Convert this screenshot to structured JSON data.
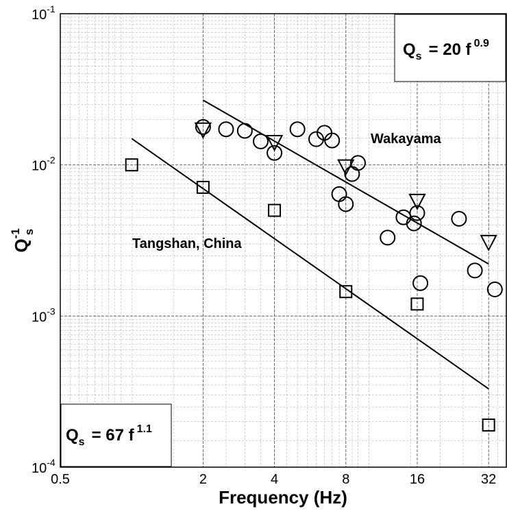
{
  "chart_data": {
    "type": "scatter",
    "x_scale": "log2",
    "y_scale": "log10",
    "xlim": [
      0.5,
      38
    ],
    "ylim": [
      0.0001,
      0.1
    ],
    "grid": true,
    "xlabel": "Frequency (Hz)",
    "ylabel": {
      "base": "Q",
      "sup": "-1",
      "sub": "s"
    },
    "x_ticks": [
      {
        "value": 0.5,
        "label": "0.5"
      },
      {
        "value": 2,
        "label": "2"
      },
      {
        "value": 4,
        "label": "4"
      },
      {
        "value": 8,
        "label": "8"
      },
      {
        "value": 16,
        "label": "16"
      },
      {
        "value": 32,
        "label": "32"
      }
    ],
    "y_ticks": [
      {
        "value": 0.1,
        "base": "10",
        "exp": "-1"
      },
      {
        "value": 0.01,
        "base": "10",
        "exp": "-2"
      },
      {
        "value": 0.001,
        "base": "10",
        "exp": "-3"
      },
      {
        "value": 0.0001,
        "base": "10",
        "exp": "-4"
      }
    ],
    "series": [
      {
        "marker": "circle",
        "x": [
          2,
          2.5,
          3,
          3.5,
          4,
          5,
          6,
          6.5,
          7,
          7.5,
          8,
          8.5,
          9,
          12,
          14,
          15.5,
          16,
          16.5,
          24,
          28,
          34
        ],
        "y": [
          0.0178,
          0.0172,
          0.0168,
          0.0143,
          0.012,
          0.0172,
          0.0148,
          0.0163,
          0.0145,
          0.0064,
          0.0055,
          0.0087,
          0.0103,
          0.0033,
          0.0045,
          0.0041,
          0.0048,
          0.00165,
          0.0044,
          0.002,
          0.0015
        ]
      },
      {
        "marker": "triangle-down",
        "x": [
          2,
          4,
          8,
          16,
          32
        ],
        "y": [
          0.0172,
          0.0142,
          0.0098,
          0.0058,
          0.0031
        ]
      },
      {
        "marker": "square",
        "x": [
          1,
          2,
          4,
          8,
          16,
          32
        ],
        "y": [
          0.01,
          0.0071,
          0.005,
          0.00145,
          0.0012,
          0.00019
        ]
      }
    ],
    "fits": [
      {
        "label": "Wakayama",
        "coef": 20,
        "exp": 0.9,
        "x_range": [
          2,
          32
        ]
      },
      {
        "label": "Tangshan, China",
        "coef": 67,
        "exp": 1.1,
        "x_range": [
          1,
          32
        ]
      }
    ],
    "annotations": {
      "top_right": {
        "q": "Q",
        "sub": "s",
        "eq": "=  20 f",
        "sup": "0.9"
      },
      "bottom_left": {
        "q": "Q",
        "sub": "s",
        "eq": "=   67 f",
        "sup": "1.1"
      }
    }
  }
}
